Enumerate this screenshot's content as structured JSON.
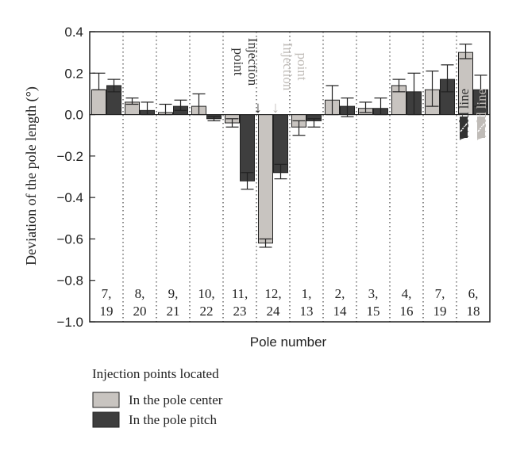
{
  "chart_data": {
    "type": "bar",
    "xlabel": "Pole number",
    "ylabel": "Deviation of the pole length (°)",
    "ylim": [
      -1.0,
      0.4
    ],
    "yticks": [
      "0.4",
      "0.2",
      "0.0",
      "−0.2",
      "−0.4",
      "−0.6",
      "−0.8",
      "−1.0"
    ],
    "ytick_values": [
      0.4,
      0.2,
      0.0,
      -0.2,
      -0.4,
      -0.6,
      -0.8,
      -1.0
    ],
    "categories": [
      "7,\n19",
      "8,\n20",
      "9,\n21",
      "10,\n22",
      "11,\n23",
      "12,\n24",
      "1,\n13",
      "2,\n14",
      "3,\n15",
      "4,\n16",
      "7,\n19",
      "6,\n18"
    ],
    "category_lines": [
      [
        "7,",
        "19"
      ],
      [
        "8,",
        "20"
      ],
      [
        "9,",
        "21"
      ],
      [
        "10,",
        "22"
      ],
      [
        "11,",
        "23"
      ],
      [
        "12,",
        "24"
      ],
      [
        "1,",
        "13"
      ],
      [
        "2,",
        "14"
      ],
      [
        "3,",
        "15"
      ],
      [
        "4,",
        "16"
      ],
      [
        "7,",
        "19"
      ],
      [
        "6,",
        "18"
      ]
    ],
    "legend_title": "Injection points located",
    "series": [
      {
        "name": "In the pole center",
        "color": "#c8c4c0",
        "values": [
          0.12,
          0.06,
          0.01,
          0.04,
          -0.04,
          -0.62,
          -0.06,
          0.07,
          0.03,
          0.14,
          0.12,
          0.3
        ],
        "err_lo": [
          0.12,
          0.05,
          0.0,
          0.0,
          -0.06,
          -0.64,
          -0.1,
          0.0,
          0.01,
          0.11,
          0.04,
          0.27
        ],
        "err_hi": [
          0.2,
          0.08,
          0.05,
          0.1,
          -0.02,
          -0.6,
          -0.03,
          0.14,
          0.06,
          0.17,
          0.21,
          0.34
        ]
      },
      {
        "name": "In the pole pitch",
        "color": "#3e3e3e",
        "values": [
          0.14,
          0.02,
          0.04,
          -0.02,
          -0.32,
          -0.28,
          -0.03,
          0.04,
          0.03,
          0.11,
          0.17,
          0.12
        ],
        "err_lo": [
          0.11,
          0.0,
          0.02,
          -0.03,
          -0.36,
          -0.31,
          -0.06,
          -0.01,
          0.0,
          0.0,
          0.11,
          0.04
        ],
        "err_hi": [
          0.17,
          0.06,
          0.07,
          -0.01,
          -0.28,
          -0.24,
          -0.02,
          0.08,
          0.08,
          0.2,
          0.24,
          0.19
        ]
      }
    ],
    "annotations": {
      "injection_pitch": {
        "line1": "Injection",
        "line2": "point",
        "arrow": "↓",
        "color": "#333333"
      },
      "injection_center": {
        "line1": "Injection",
        "line2": "point",
        "arrow": "↓",
        "color": "#c0bcb8"
      },
      "weld_pitch": {
        "label": "Weld line",
        "color": "#333333"
      },
      "weld_center": {
        "label": "Weld line",
        "color": "#c0bcb8"
      }
    }
  }
}
